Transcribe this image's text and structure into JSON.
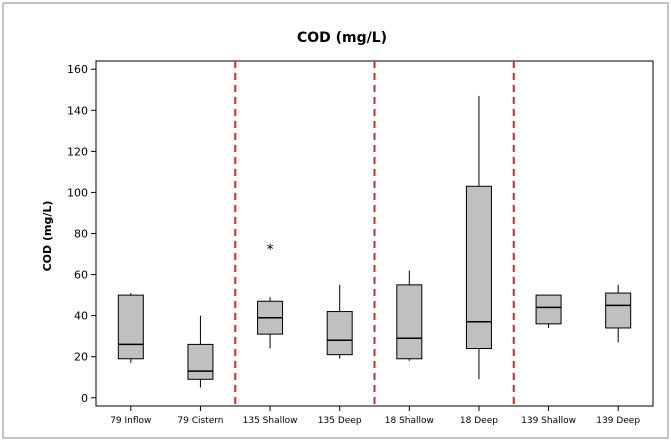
{
  "chart_data": {
    "type": "boxplot",
    "title": "COD (mg/L)",
    "ylabel": "COD (mg/L)",
    "xlabel": "",
    "ylim": [
      -4,
      164
    ],
    "yticks": [
      0,
      20,
      40,
      60,
      80,
      100,
      120,
      140,
      160
    ],
    "categories": [
      "79 Inflow",
      "79 Cistern",
      "135 Shallow",
      "135 Deep",
      "18 Shallow",
      "18 Deep",
      "139 Shallow",
      "139 Deep"
    ],
    "boxes": [
      {
        "category": "79 Inflow",
        "whisker_low": 17,
        "q1": 19,
        "median": 26,
        "q3": 50,
        "whisker_high": 51,
        "outliers": []
      },
      {
        "category": "79 Cistern",
        "whisker_low": 5,
        "q1": 9,
        "median": 13,
        "q3": 26,
        "whisker_high": 40,
        "outliers": []
      },
      {
        "category": "135 Shallow",
        "whisker_low": 24,
        "q1": 31,
        "median": 39,
        "q3": 47,
        "whisker_high": 49,
        "outliers": [
          73
        ]
      },
      {
        "category": "135 Deep",
        "whisker_low": 19,
        "q1": 21,
        "median": 28,
        "q3": 42,
        "whisker_high": 55,
        "outliers": []
      },
      {
        "category": "18 Shallow",
        "whisker_low": 18,
        "q1": 19,
        "median": 29,
        "q3": 55,
        "whisker_high": 62,
        "outliers": []
      },
      {
        "category": "18 Deep",
        "whisker_low": 9,
        "q1": 24,
        "median": 37,
        "q3": 103,
        "whisker_high": 147,
        "outliers": []
      },
      {
        "category": "139 Shallow",
        "whisker_low": 34,
        "q1": 36,
        "median": 44,
        "q3": 50,
        "whisker_high": 50,
        "outliers": []
      },
      {
        "category": "139 Deep",
        "whisker_low": 27,
        "q1": 34,
        "median": 45,
        "q3": 51,
        "whisker_high": 55,
        "outliers": []
      }
    ],
    "dividers_after_category_index": [
      1,
      3,
      5
    ],
    "colors": {
      "box_fill": "#c0c0c0",
      "box_stroke": "#000000",
      "divider": "#cc2a2a",
      "axis": "#000000",
      "background": "#ffffff"
    },
    "grid": false,
    "legend": "none"
  }
}
